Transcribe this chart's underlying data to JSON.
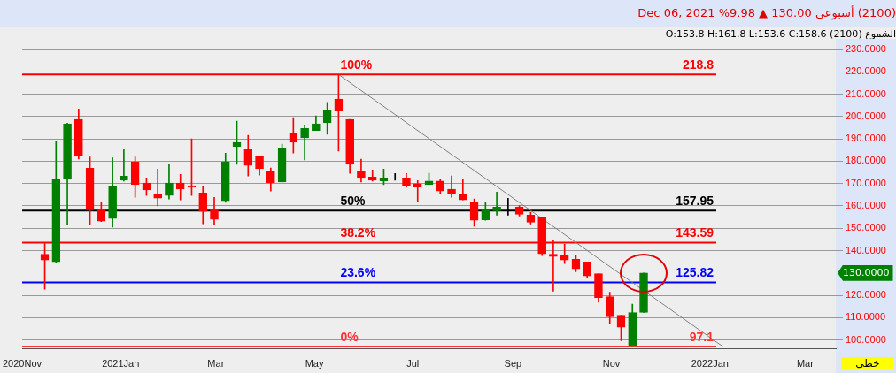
{
  "chart_data": {
    "type": "candlestick",
    "title": "(2100) أسبوعي 130.00 ▲ 9.98% Dec 06, 2021",
    "subtitle": "الشموع (2100) O:153.8 H:161.8 L:153.6 C:158.6",
    "x": [
      "2020-11-15",
      "2020-11-22",
      "2020-11-29",
      "2020-12-06",
      "2020-12-13",
      "2020-12-20",
      "2020-12-27",
      "2021-01-03",
      "2021-01-10",
      "2021-01-17",
      "2021-01-24",
      "2021-01-31",
      "2021-02-07",
      "2021-02-14",
      "2021-02-21",
      "2021-02-28",
      "2021-03-07",
      "2021-03-14",
      "2021-03-21",
      "2021-03-28",
      "2021-04-04",
      "2021-04-11",
      "2021-04-18",
      "2021-04-25",
      "2021-05-02",
      "2021-05-09",
      "2021-05-16",
      "2021-05-23",
      "2021-05-30",
      "2021-06-06",
      "2021-06-13",
      "2021-06-20",
      "2021-06-27",
      "2021-07-04",
      "2021-07-11",
      "2021-07-18",
      "2021-07-25",
      "2021-08-01",
      "2021-08-08",
      "2021-08-15",
      "2021-08-22",
      "2021-08-29",
      "2021-09-05",
      "2021-09-12",
      "2021-09-19",
      "2021-09-26",
      "2021-10-03",
      "2021-10-10",
      "2021-10-17",
      "2021-10-24",
      "2021-10-31",
      "2021-11-07",
      "2021-11-14",
      "2021-11-21"
    ],
    "ohlc": [
      [
        138.4,
        143.2,
        122.7,
        135.8
      ],
      [
        135.0,
        189.1,
        134.6,
        171.7
      ],
      [
        171.9,
        197.0,
        151.6,
        196.7
      ],
      [
        198.7,
        203.4,
        181.0,
        182.6
      ],
      [
        176.9,
        181.9,
        151.6,
        158.4
      ],
      [
        158.7,
        161.4,
        153.0,
        153.2
      ],
      [
        154.4,
        181.5,
        150.5,
        168.6
      ],
      [
        171.5,
        185.2,
        171.1,
        173.3
      ],
      [
        179.7,
        181.9,
        163.9,
        169.5
      ],
      [
        170.2,
        172.5,
        164.7,
        167.1
      ],
      [
        165.4,
        176.5,
        160.0,
        163.5
      ],
      [
        164.7,
        178.5,
        163.1,
        170.2
      ],
      [
        170.2,
        174.1,
        162.7,
        167.5
      ],
      [
        169.1,
        190.0,
        164.7,
        168.3
      ],
      [
        165.8,
        168.6,
        152.0,
        157.6
      ],
      [
        158.7,
        163.8,
        151.6,
        154.0
      ],
      [
        162.3,
        183.6,
        161.6,
        179.7
      ],
      [
        186.5,
        197.9,
        178.6,
        188.4
      ],
      [
        185.2,
        191.6,
        173.4,
        178.1
      ],
      [
        182.0,
        182.0,
        173.8,
        176.6
      ],
      [
        175.7,
        177.0,
        166.7,
        170.3
      ],
      [
        170.7,
        187.6,
        170.7,
        185.6
      ],
      [
        192.7,
        199.5,
        183.7,
        188.5
      ],
      [
        190.5,
        196.3,
        180.6,
        194.7
      ],
      [
        193.7,
        200.3,
        193.7,
        196.7
      ],
      [
        197.2,
        206.3,
        192.1,
        202.7
      ],
      [
        207.8,
        218.8,
        184.5,
        202.4
      ],
      [
        198.7,
        198.7,
        174.6,
        178.6
      ],
      [
        175.7,
        180.9,
        170.7,
        172.7
      ],
      [
        172.9,
        176.1,
        171.1,
        171.5
      ],
      [
        171.1,
        176.5,
        169.5,
        172.5
      ],
      [
        172.5,
        174.5,
        171.5,
        172.5
      ],
      [
        172.5,
        174.5,
        168.3,
        169.1
      ],
      [
        169.9,
        171.3,
        162.0,
        168.3
      ],
      [
        169.5,
        174.6,
        169.5,
        171.1
      ],
      [
        171.1,
        171.7,
        165.5,
        166.7
      ],
      [
        167.5,
        173.4,
        163.9,
        165.5
      ],
      [
        165.0,
        171.7,
        162.7,
        162.7
      ],
      [
        161.8,
        163.1,
        150.9,
        153.6
      ],
      [
        153.8,
        161.8,
        153.6,
        158.6
      ],
      [
        157.9,
        166.2,
        155.9,
        159.5
      ],
      [
        159.1,
        163.4,
        155.9,
        159.1
      ],
      [
        159.5,
        160.2,
        155.5,
        156.3
      ],
      [
        155.9,
        157.1,
        151.9,
        152.7
      ],
      [
        154.7,
        154.7,
        137.8,
        138.6
      ],
      [
        138.4,
        144.4,
        121.9,
        137.4
      ],
      [
        137.8,
        142.9,
        134.2,
        135.8
      ],
      [
        136.1,
        137.8,
        130.6,
        131.8
      ],
      [
        134.9,
        134.9,
        127.9,
        128.7
      ],
      [
        129.7,
        129.7,
        116.9,
        119.0
      ],
      [
        119.4,
        121.4,
        107.3,
        110.4
      ],
      [
        111.1,
        111.1,
        99.7,
        105.7
      ],
      [
        97.1,
        116.1,
        97.1,
        112.3
      ],
      [
        112.4,
        130.0,
        112.4,
        130.0
      ]
    ],
    "colors": [
      "#ff0000",
      "#008000",
      "#008000",
      "#ff0000",
      "#ff0000",
      "#ff0000",
      "#008000",
      "#008000",
      "#ff0000",
      "#ff0000",
      "#ff0000",
      "#008000",
      "#ff0000",
      "#ff0000",
      "#ff0000",
      "#ff0000",
      "#008000",
      "#008000",
      "#ff0000",
      "#ff0000",
      "#ff0000",
      "#008000",
      "#ff0000",
      "#008000",
      "#008000",
      "#008000",
      "#ff0000",
      "#ff0000",
      "#ff0000",
      "#ff0000",
      "#008000",
      "#000000",
      "#ff0000",
      "#ff0000",
      "#008000",
      "#ff0000",
      "#ff0000",
      "#ff0000",
      "#ff0000",
      "#008000",
      "#008000",
      "#000000",
      "#ff0000",
      "#ff0000",
      "#ff0000",
      "#ff0000",
      "#ff0000",
      "#ff0000",
      "#ff0000",
      "#ff0000",
      "#ff0000",
      "#ff0000",
      "#008000",
      "#008000"
    ],
    "series": [
      {
        "type": "line",
        "color": "#808080",
        "x": [
          "2021-05-16",
          "2022-01-09"
        ],
        "values": [
          218.8,
          97.1
        ]
      }
    ],
    "xlim": [
      "2020-11-01",
      "2022-03-20"
    ],
    "xticks": [
      {
        "value": "2020-11-01",
        "label": "2020Nov"
      },
      {
        "value": "2021-01-01",
        "label": "2021Jan"
      },
      {
        "value": "2021-03-01",
        "label": "Mar"
      },
      {
        "value": "2021-05-01",
        "label": "May"
      },
      {
        "value": "2021-07-01",
        "label": "Jul"
      },
      {
        "value": "2021-09-01",
        "label": "Sep"
      },
      {
        "value": "2021-11-01",
        "label": "Nov"
      },
      {
        "value": "2022-01-01",
        "label": "2022Jan"
      },
      {
        "value": "2022-03-01",
        "label": "Mar"
      }
    ],
    "ylim": [
      96,
      230
    ],
    "yticks": [
      {
        "value": 100,
        "label": "100.0000"
      },
      {
        "value": 110,
        "label": "110.0000"
      },
      {
        "value": 120,
        "label": "120.0000"
      },
      {
        "value": 140,
        "label": "140.0000"
      },
      {
        "value": 150,
        "label": "150.0000"
      },
      {
        "value": 160,
        "label": "160.0000"
      },
      {
        "value": 170,
        "label": "170.0000"
      },
      {
        "value": 180,
        "label": "180.0000"
      },
      {
        "value": 190,
        "label": "190.0000"
      },
      {
        "value": 200,
        "label": "200.0000"
      },
      {
        "value": 210,
        "label": "210.0000"
      },
      {
        "value": 220,
        "label": "220.0000"
      },
      {
        "value": 230,
        "label": "230.0000"
      }
    ],
    "grid": "y",
    "ref_lines": [
      {
        "axis": "y",
        "value": 218.8,
        "label": "218.8",
        "color": "#ff0000"
      },
      {
        "axis": "y",
        "value": 157.95,
        "label": "157.95",
        "color": "#000000"
      },
      {
        "axis": "y",
        "value": 143.59,
        "label": "143.59",
        "color": "#ff0000"
      },
      {
        "axis": "y",
        "value": 125.82,
        "label": "125.82",
        "color": "#0000ff"
      },
      {
        "axis": "y",
        "value": 97.1,
        "label": "97.1",
        "color": "#ff3333"
      }
    ],
    "annotations": [
      {
        "text": "100%",
        "x": "2021-05-16",
        "y": 218.8
      },
      {
        "text": "50%",
        "x": "2021-05-16",
        "y": 157.95
      },
      {
        "text": "38.2%",
        "x": "2021-05-16",
        "y": 143.59
      },
      {
        "text": "23.6%",
        "x": "2021-05-16",
        "y": 125.82
      },
      {
        "text": "0%",
        "x": "2021-05-16",
        "y": 97.1
      },
      "130.0000",
      "خطي"
    ]
  }
}
